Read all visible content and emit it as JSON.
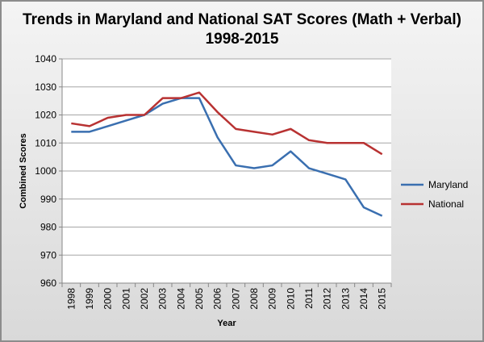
{
  "chart_data": {
    "type": "line",
    "title": "Trends in Maryland and National SAT Scores (Math + Verbal)",
    "subtitle": "1998-2015",
    "xlabel": "Year",
    "ylabel": "Combined Scores",
    "ylim": [
      960,
      1040
    ],
    "yticks": [
      960,
      970,
      980,
      990,
      1000,
      1010,
      1020,
      1030,
      1040
    ],
    "grid": true,
    "legend_position": "right",
    "categories": [
      "1998",
      "1999",
      "2000",
      "2001",
      "2002",
      "2003",
      "2004",
      "2005",
      "2006",
      "2007",
      "2008",
      "2009",
      "2010",
      "2011",
      "2012",
      "2013",
      "2014",
      "2015"
    ],
    "series": [
      {
        "name": "Maryland",
        "color": "#3a6fb0",
        "values": [
          1014,
          1014,
          1016,
          1018,
          1020,
          1024,
          1026,
          1026,
          1012,
          1002,
          1001,
          1002,
          1007,
          1001,
          999,
          997,
          987,
          984
        ]
      },
      {
        "name": "National",
        "color": "#b83232",
        "values": [
          1017,
          1016,
          1019,
          1020,
          1020,
          1026,
          1026,
          1028,
          1021,
          1015,
          1014,
          1013,
          1015,
          1011,
          1010,
          1010,
          1010,
          1006
        ]
      }
    ]
  }
}
